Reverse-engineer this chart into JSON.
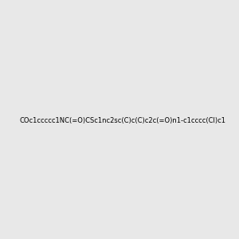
{
  "background_color": "#e8e8e8",
  "title": "",
  "smiles": "COc1ccccc1NC(=O)CSc1nc2sc(C)c(C)c2c(=O)n1-c1cccc(Cl)c1"
}
